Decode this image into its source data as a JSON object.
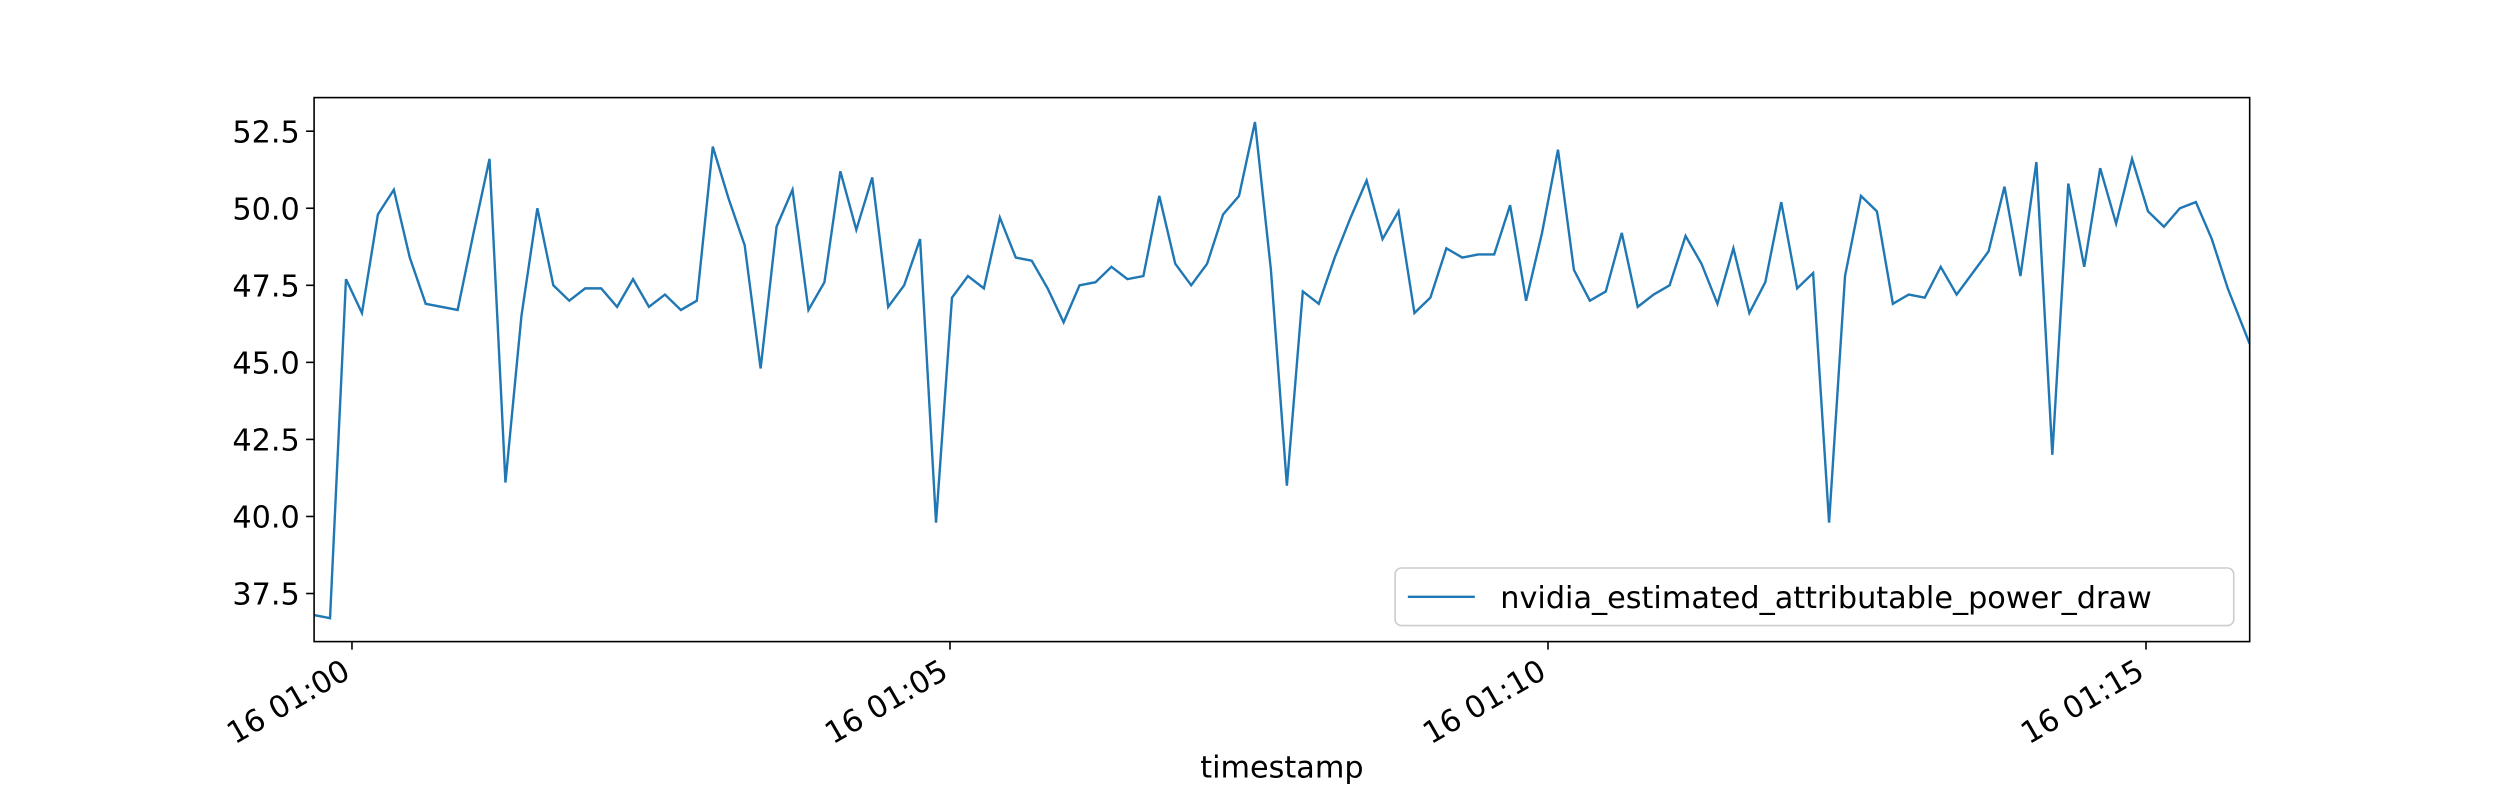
{
  "chart_data": {
    "type": "line",
    "x_label": "timestamp",
    "x": [
      -19,
      -11,
      -3,
      5,
      13,
      21,
      29,
      37,
      53,
      61,
      69,
      77,
      85,
      93,
      101,
      109,
      117,
      125,
      133,
      141,
      149,
      157,
      165,
      173,
      181,
      189,
      197,
      205,
      213,
      221,
      229,
      237,
      245,
      253,
      261,
      269,
      277,
      285,
      293,
      301,
      309,
      317,
      325,
      333,
      341,
      349,
      357,
      365,
      373,
      381,
      389,
      397,
      405,
      413,
      421,
      429,
      437,
      445,
      453,
      461,
      469,
      477,
      485,
      493,
      501,
      509,
      517,
      525,
      533,
      541,
      549,
      557,
      565,
      573,
      581,
      589,
      597,
      605,
      613,
      621,
      629,
      637,
      645,
      653,
      661,
      669,
      677,
      685,
      693,
      701,
      709,
      717,
      725,
      733,
      741,
      749,
      757,
      765,
      773,
      781,
      789,
      797,
      805,
      813,
      821,
      829,
      837,
      845,
      853,
      861,
      869,
      877,
      885,
      893,
      901,
      909,
      917,
      925,
      933,
      941,
      952
    ],
    "series": [
      {
        "name": "nvidia_estimated_attributable_power_draw",
        "color": "#1f77b4",
        "values": [
          36.8,
          36.7,
          47.7,
          46.6,
          49.8,
          50.6,
          48.4,
          46.9,
          46.7,
          49.2,
          51.6,
          41.1,
          46.5,
          50.0,
          47.5,
          47.0,
          47.4,
          47.4,
          46.8,
          47.7,
          46.8,
          47.2,
          46.7,
          47.0,
          52.0,
          50.3,
          48.8,
          44.8,
          49.4,
          50.6,
          46.7,
          47.6,
          51.2,
          49.3,
          51.0,
          46.8,
          47.5,
          49.0,
          39.8,
          47.1,
          47.8,
          47.4,
          49.7,
          48.4,
          48.3,
          47.4,
          46.3,
          47.5,
          47.6,
          48.1,
          47.7,
          47.8,
          50.4,
          48.2,
          47.5,
          48.2,
          49.8,
          50.4,
          52.8,
          48.0,
          41.0,
          47.3,
          46.9,
          48.4,
          49.7,
          50.9,
          49.0,
          49.9,
          46.6,
          47.1,
          48.7,
          48.4,
          48.5,
          48.5,
          50.1,
          47.0,
          49.2,
          51.9,
          48.0,
          47.0,
          47.3,
          49.2,
          46.8,
          47.2,
          47.5,
          49.1,
          48.2,
          46.9,
          48.7,
          46.6,
          47.6,
          50.2,
          47.4,
          47.9,
          39.8,
          47.8,
          50.4,
          49.9,
          46.9,
          47.2,
          47.1,
          48.1,
          47.2,
          47.9,
          48.6,
          50.7,
          47.8,
          51.5,
          42.0,
          50.8,
          48.1,
          51.3,
          49.5,
          51.6,
          49.9,
          49.4,
          50.0,
          50.2,
          49.0,
          47.4,
          45.6
        ]
      }
    ],
    "xlim": [
      -19,
      952
    ],
    "xticks": [
      {
        "value": 0,
        "label": "16 01:00"
      },
      {
        "value": 300,
        "label": "16 01:05"
      },
      {
        "value": 600,
        "label": "16 01:10"
      },
      {
        "value": 900,
        "label": "16 01:15"
      }
    ],
    "ylim": [
      35.94,
      53.59
    ],
    "yticks": [
      37.5,
      {
        "value": 40,
        "label": "40.0"
      },
      42.5,
      {
        "value": 45,
        "label": "45.0"
      },
      47.5,
      {
        "value": 50,
        "label": "50.0"
      },
      52.5
    ],
    "legend": "lower right"
  }
}
